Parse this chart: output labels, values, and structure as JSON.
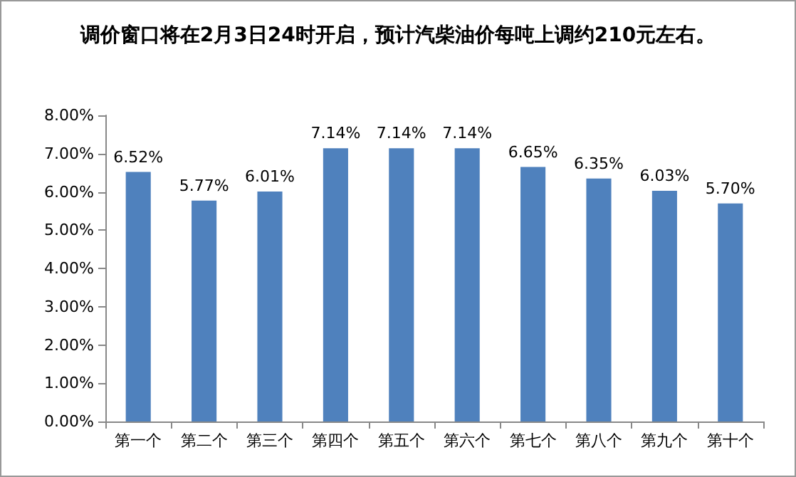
{
  "chart_data": {
    "type": "bar",
    "title": "调价窗口将在2月3日24时开启，预计汽柴油价每吨上调约210元左右。",
    "categories": [
      "第一个",
      "第二个",
      "第三个",
      "第四个",
      "第五个",
      "第六个",
      "第七个",
      "第八个",
      "第九个",
      "第十个"
    ],
    "values": [
      6.52,
      5.77,
      6.01,
      7.14,
      7.14,
      7.14,
      6.65,
      6.35,
      6.03,
      5.7
    ],
    "value_labels": [
      "6.52%",
      "5.77%",
      "6.01%",
      "7.14%",
      "7.14%",
      "7.14%",
      "6.65%",
      "6.35%",
      "6.03%",
      "5.70%"
    ],
    "color": "#4f81bd",
    "ylim": [
      0,
      8
    ],
    "yticks": [
      {
        "value": 0,
        "label": "0.00%"
      },
      {
        "value": 1,
        "label": "1.00%"
      },
      {
        "value": 2,
        "label": "2.00%"
      },
      {
        "value": 3,
        "label": "3.00%"
      },
      {
        "value": 4,
        "label": "4.00%"
      },
      {
        "value": 5,
        "label": "5.00%"
      },
      {
        "value": 6,
        "label": "6.00%"
      },
      {
        "value": 7,
        "label": "7.00%"
      },
      {
        "value": 8,
        "label": "8.00%"
      }
    ],
    "grid": false
  }
}
